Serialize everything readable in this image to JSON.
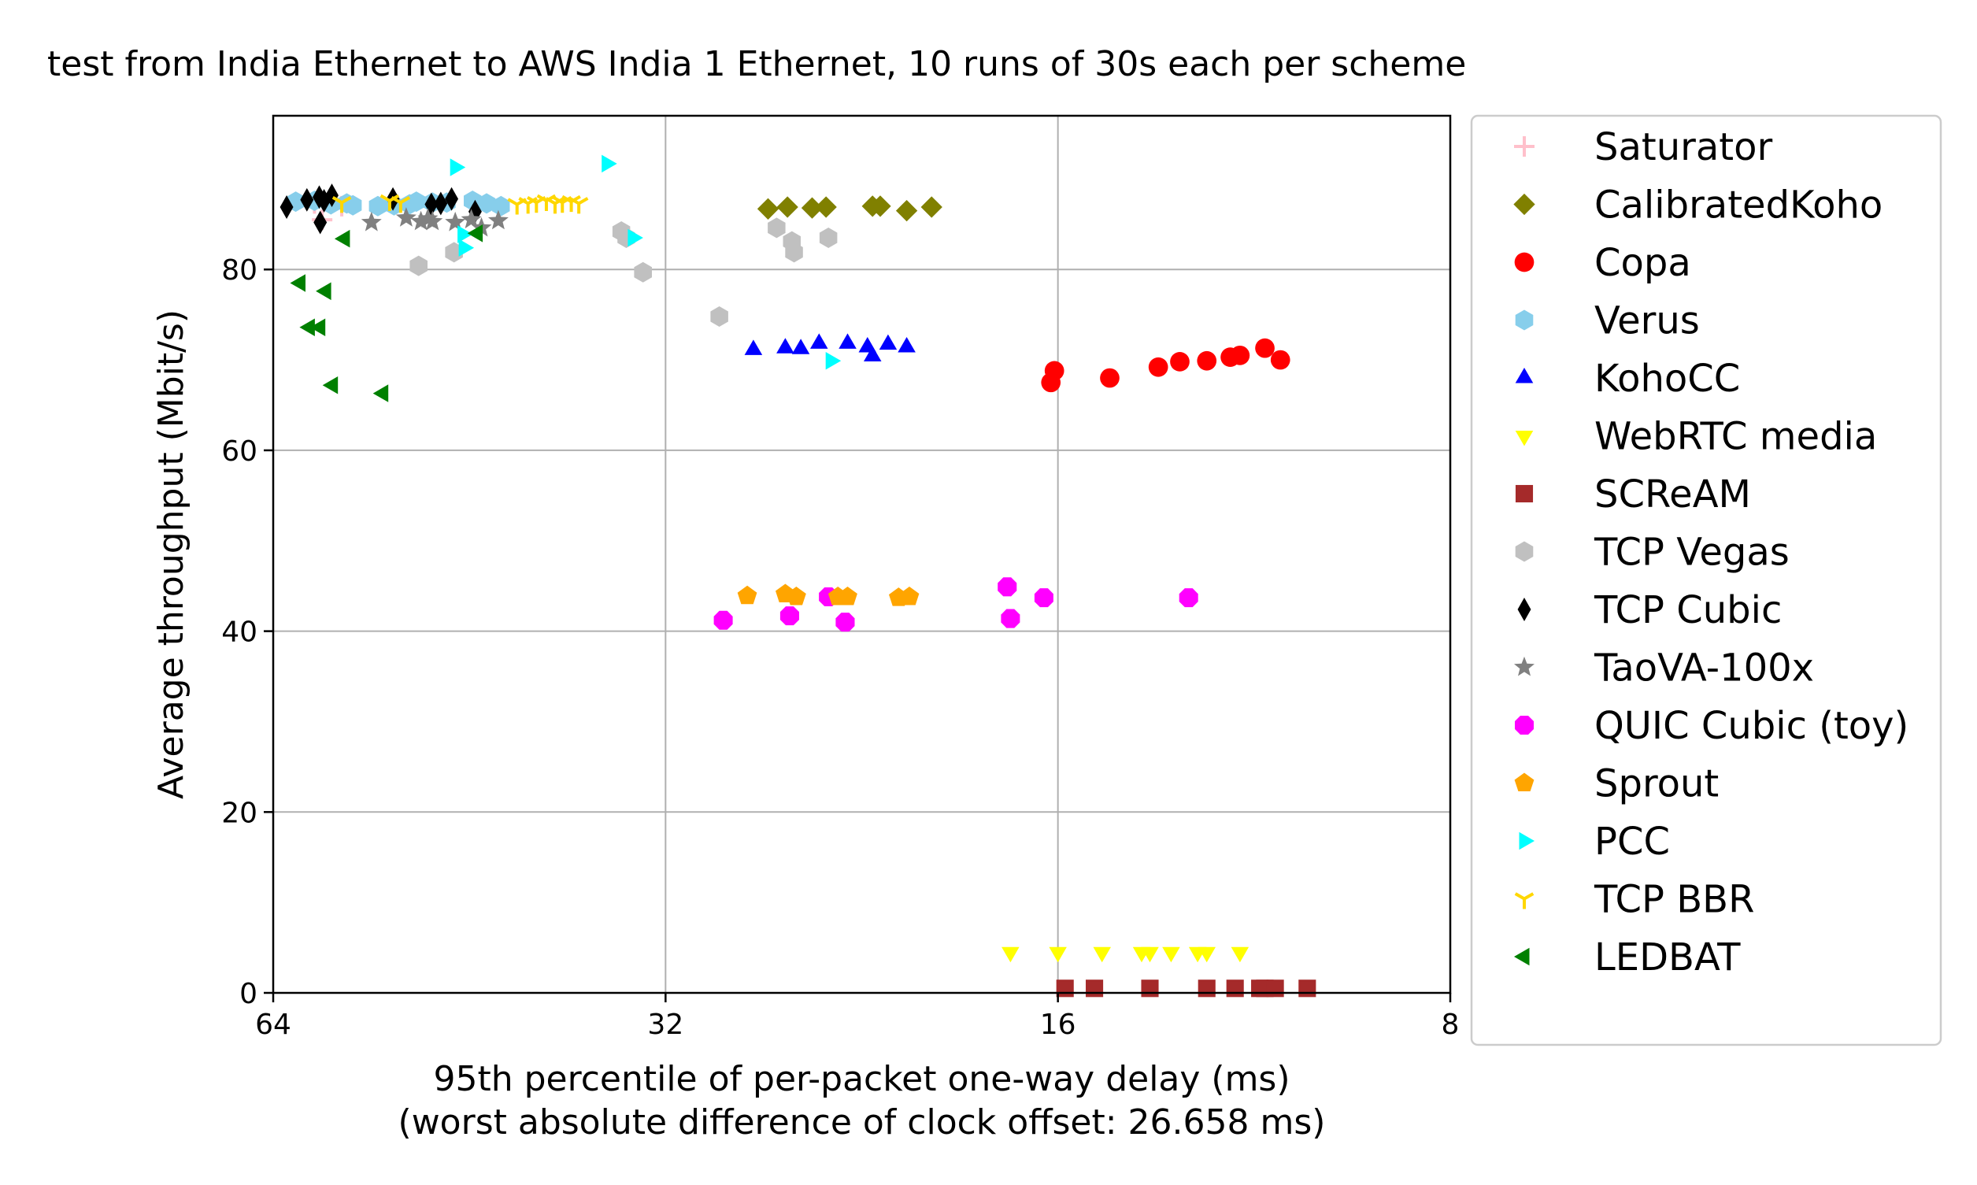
{
  "chart_data": {
    "type": "scatter",
    "title": "test from India Ethernet to AWS India 1 Ethernet, 10 runs of 30s each per scheme",
    "xlabel": "95th percentile of per-packet one-way delay (ms)",
    "xlabel2": "(worst absolute difference of clock offset: 26.658 ms)",
    "ylabel": "Average throughput (Mbit/s)",
    "x_scale": "log2-reversed",
    "xlim": [
      64,
      8
    ],
    "ylim": [
      0,
      97
    ],
    "xticks": [
      64,
      32,
      16,
      8
    ],
    "yticks": [
      0,
      20,
      40,
      60,
      80
    ],
    "grid": true,
    "legend_position": "outside-right",
    "series": [
      {
        "name": "Saturator",
        "marker": "plus",
        "color": "#ffc0cb",
        "points": [
          [
            59.5,
            87.3
          ],
          [
            58.7,
            85.5
          ],
          [
            56.7,
            87.0
          ]
        ]
      },
      {
        "name": "CalibratedKoho",
        "marker": "diamond",
        "color": "#808000",
        "points": [
          [
            26.7,
            86.7
          ],
          [
            25.8,
            86.9
          ],
          [
            24.7,
            86.8
          ],
          [
            24.1,
            86.9
          ],
          [
            22.2,
            87.0
          ],
          [
            21.9,
            87.0
          ],
          [
            20.9,
            86.5
          ],
          [
            20.0,
            86.9
          ]
        ]
      },
      {
        "name": "Copa",
        "marker": "circle",
        "color": "#ff0000",
        "points": [
          [
            16.2,
            67.5
          ],
          [
            16.1,
            68.8
          ],
          [
            14.6,
            68.0
          ],
          [
            13.4,
            69.2
          ],
          [
            12.9,
            69.8
          ],
          [
            12.3,
            69.9
          ],
          [
            11.8,
            70.3
          ],
          [
            11.6,
            70.5
          ],
          [
            11.1,
            71.3
          ],
          [
            10.8,
            70.0
          ]
        ]
      },
      {
        "name": "Verus",
        "marker": "hexagon",
        "color": "#87ceeb",
        "points": [
          [
            61.5,
            87.5
          ],
          [
            59.5,
            87.6
          ],
          [
            57.8,
            87.2
          ],
          [
            56.2,
            87.3
          ],
          [
            55.6,
            87.1
          ],
          [
            53.2,
            87.0
          ],
          [
            51.7,
            87.1
          ],
          [
            50.3,
            87.2
          ],
          [
            49.7,
            87.5
          ],
          [
            48.3,
            87.4
          ],
          [
            47.1,
            87.4
          ],
          [
            45.0,
            87.6
          ],
          [
            43.9,
            87.3
          ],
          [
            42.8,
            87.0
          ]
        ]
      },
      {
        "name": "KohoCC",
        "marker": "triangle-up",
        "color": "#0000ff",
        "points": [
          [
            27.4,
            71.1
          ],
          [
            25.9,
            71.3
          ],
          [
            25.2,
            71.2
          ],
          [
            24.4,
            71.8
          ],
          [
            23.2,
            71.8
          ],
          [
            22.4,
            71.4
          ],
          [
            22.2,
            70.4
          ],
          [
            21.6,
            71.7
          ],
          [
            20.9,
            71.4
          ]
        ]
      },
      {
        "name": "WebRTC media",
        "marker": "triangle-down",
        "color": "#ffff00",
        "points": [
          [
            17.4,
            4.5
          ],
          [
            16.0,
            4.5
          ],
          [
            14.8,
            4.5
          ],
          [
            13.8,
            4.5
          ],
          [
            13.6,
            4.5
          ],
          [
            13.1,
            4.5
          ],
          [
            12.5,
            4.5
          ],
          [
            12.3,
            4.5
          ],
          [
            11.6,
            4.5
          ]
        ]
      },
      {
        "name": "SCReAM",
        "marker": "square",
        "color": "#a52a2a",
        "points": [
          [
            15.8,
            0.5
          ],
          [
            15.0,
            0.5
          ],
          [
            13.6,
            0.5
          ],
          [
            12.3,
            0.5
          ],
          [
            11.7,
            0.5
          ],
          [
            11.2,
            0.5
          ],
          [
            11.1,
            0.5
          ],
          [
            10.9,
            0.5
          ],
          [
            10.3,
            0.5
          ]
        ]
      },
      {
        "name": "TCP Vegas",
        "marker": "hexagon",
        "color": "#c0c0c0",
        "points": [
          [
            49.5,
            80.4
          ],
          [
            46.5,
            81.9
          ],
          [
            34.6,
            84.2
          ],
          [
            34.3,
            83.5
          ],
          [
            33.3,
            79.7
          ],
          [
            29.1,
            74.8
          ],
          [
            26.3,
            84.6
          ],
          [
            25.6,
            83.1
          ],
          [
            25.5,
            81.9
          ],
          [
            24.0,
            83.5
          ]
        ]
      },
      {
        "name": "TCP Cubic",
        "marker": "thin-diamond",
        "color": "#000000",
        "points": [
          [
            62.5,
            86.9
          ],
          [
            60.3,
            87.7
          ],
          [
            59.0,
            88.0
          ],
          [
            58.9,
            85.2
          ],
          [
            58.5,
            87.6
          ],
          [
            57.7,
            88.2
          ],
          [
            51.8,
            87.8
          ],
          [
            48.4,
            87.2
          ],
          [
            47.6,
            87.3
          ],
          [
            46.7,
            87.8
          ],
          [
            44.8,
            86.4
          ]
        ]
      },
      {
        "name": "TaoVA-100x",
        "marker": "star",
        "color": "#808080",
        "points": [
          [
            53.8,
            85.2
          ],
          [
            50.6,
            85.7
          ],
          [
            49.3,
            85.3
          ],
          [
            48.7,
            85.6
          ],
          [
            48.3,
            85.3
          ],
          [
            46.4,
            85.2
          ],
          [
            45.1,
            85.5
          ],
          [
            44.3,
            84.6
          ],
          [
            43.0,
            85.4
          ]
        ]
      },
      {
        "name": "QUIC Cubic (toy)",
        "marker": "octagon",
        "color": "#ff00ff",
        "points": [
          [
            28.9,
            41.2
          ],
          [
            25.7,
            41.7
          ],
          [
            24.0,
            43.8
          ],
          [
            23.3,
            41.0
          ],
          [
            17.4,
            41.4
          ],
          [
            17.5,
            44.9
          ],
          [
            16.4,
            43.7
          ],
          [
            12.7,
            43.7
          ]
        ]
      },
      {
        "name": "Sprout",
        "marker": "pentagon",
        "color": "#ffa500",
        "points": [
          [
            27.7,
            43.9
          ],
          [
            25.9,
            44.1
          ],
          [
            25.4,
            43.8
          ],
          [
            23.6,
            43.8
          ],
          [
            23.2,
            43.8
          ],
          [
            21.2,
            43.7
          ],
          [
            20.8,
            43.8
          ]
        ]
      },
      {
        "name": "PCC",
        "marker": "triangle-right",
        "color": "#00ffff",
        "points": [
          [
            46.4,
            91.3
          ],
          [
            45.8,
            83.9
          ],
          [
            45.7,
            82.4
          ],
          [
            35.5,
            91.7
          ],
          [
            33.9,
            83.5
          ],
          [
            23.9,
            69.9
          ]
        ]
      },
      {
        "name": "TCP BBR",
        "marker": "tri-down",
        "color": "#ffd700",
        "points": [
          [
            56.7,
            87.4
          ],
          [
            52.1,
            87.6
          ],
          [
            51.1,
            87.4
          ],
          [
            41.6,
            87.2
          ],
          [
            40.8,
            87.3
          ],
          [
            40.2,
            87.4
          ],
          [
            39.5,
            87.6
          ],
          [
            38.9,
            87.3
          ],
          [
            38.4,
            87.4
          ],
          [
            37.8,
            87.5
          ],
          [
            37.3,
            87.3
          ]
        ]
      },
      {
        "name": "LEDBAT",
        "marker": "triangle-left",
        "color": "#008000",
        "points": [
          [
            61.0,
            78.5
          ],
          [
            60.0,
            73.6
          ],
          [
            58.9,
            73.6
          ],
          [
            58.3,
            77.6
          ],
          [
            57.6,
            67.2
          ],
          [
            56.4,
            83.4
          ],
          [
            52.7,
            66.3
          ],
          [
            44.6,
            84.0
          ]
        ]
      }
    ]
  }
}
